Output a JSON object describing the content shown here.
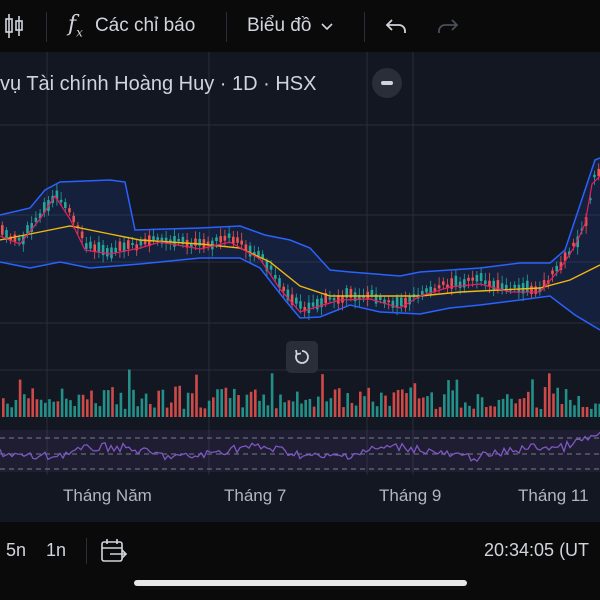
{
  "toolbar": {
    "indicators_label": "Các chỉ báo",
    "chart_type_label": "Biểu đồ"
  },
  "legend": {
    "title": "vụ Tài chính Hoàng Huy · 1D · HSX"
  },
  "x_axis": {
    "labels": [
      "Tháng Năm",
      "Tháng 7",
      "Tháng 9",
      "Tháng 11"
    ]
  },
  "bottom": {
    "range_5n": "5n",
    "range_1n": "1n",
    "time": "20:34:05 (UT"
  },
  "colors": {
    "up": "#26a69a",
    "down": "#ef5350",
    "bb": "#2962ff",
    "ma": "#f0b90b",
    "rsi": "#7e57c2"
  }
}
